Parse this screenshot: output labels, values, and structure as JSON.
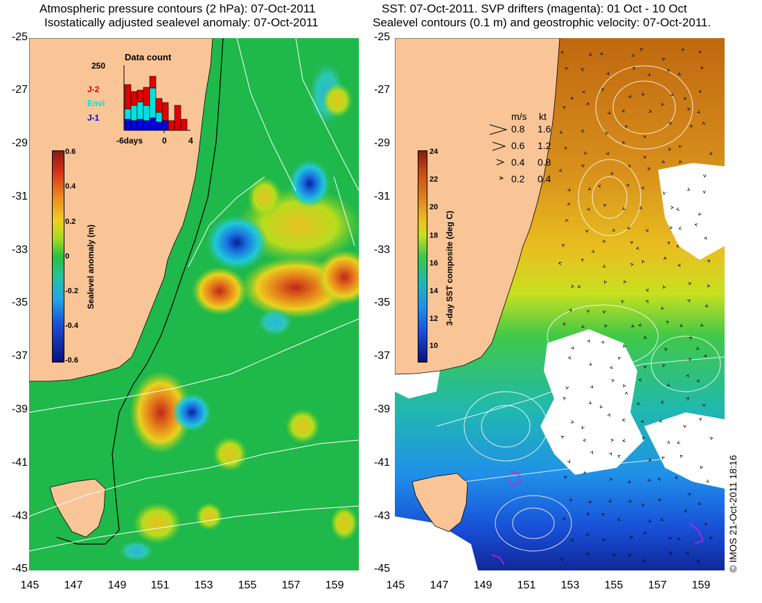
{
  "left_panel": {
    "title_line1": "Atmospheric pressure contours (2 hPa): 07-Oct-2011",
    "title_line2": "Isostatically adjusted sealevel anomaly: 07-Oct-2011",
    "colorbar": {
      "title": "Sealevel anomaly (m)",
      "ticks": [
        "0.6",
        "0.4",
        "0.2",
        "0",
        "-0.2",
        "-0.4",
        "-0.6"
      ]
    },
    "data_count": {
      "title": "Data count",
      "max_label": "250",
      "x_ticks": [
        "-6days",
        "0",
        "4"
      ],
      "legend": [
        {
          "name": "J-2",
          "color": "#e00000"
        },
        {
          "name": "Envi",
          "color": "#00e0e0"
        },
        {
          "name": "J-1",
          "color": "#0000e0"
        }
      ]
    }
  },
  "right_panel": {
    "title_line1": "SST: 07-Oct-2011. SVP drifters (magenta): 01 Oct - 10 Oct",
    "title_line2": "Sealevel contours (0.1 m) and geostrophic velocity: 07-Oct-2011.",
    "colorbar": {
      "title": "3-day SST composite (deg C)",
      "ticks": [
        "24",
        "22",
        "20",
        "18",
        "16",
        "14",
        "12",
        "10"
      ]
    },
    "velocity_key": {
      "header_ms": "m/s",
      "header_kt": "kt",
      "rows": [
        {
          "ms": "0.8",
          "kt": "1.6"
        },
        {
          "ms": "0.6",
          "kt": "1.2"
        },
        {
          "ms": "0.4",
          "kt": "0.8"
        },
        {
          "ms": "0.2",
          "kt": "0.4"
        }
      ]
    },
    "credit": "© IMOS 21-Oct-2011 18:16"
  },
  "axes": {
    "y_ticks": [
      "-25",
      "-27",
      "-29",
      "-31",
      "-33",
      "-35",
      "-37",
      "-39",
      "-41",
      "-43",
      "-45"
    ],
    "x_ticks": [
      "145",
      "147",
      "149",
      "151",
      "153",
      "155",
      "157",
      "159"
    ]
  },
  "colors": {
    "land": "#f9c597",
    "no_data": "#ffffff"
  }
}
